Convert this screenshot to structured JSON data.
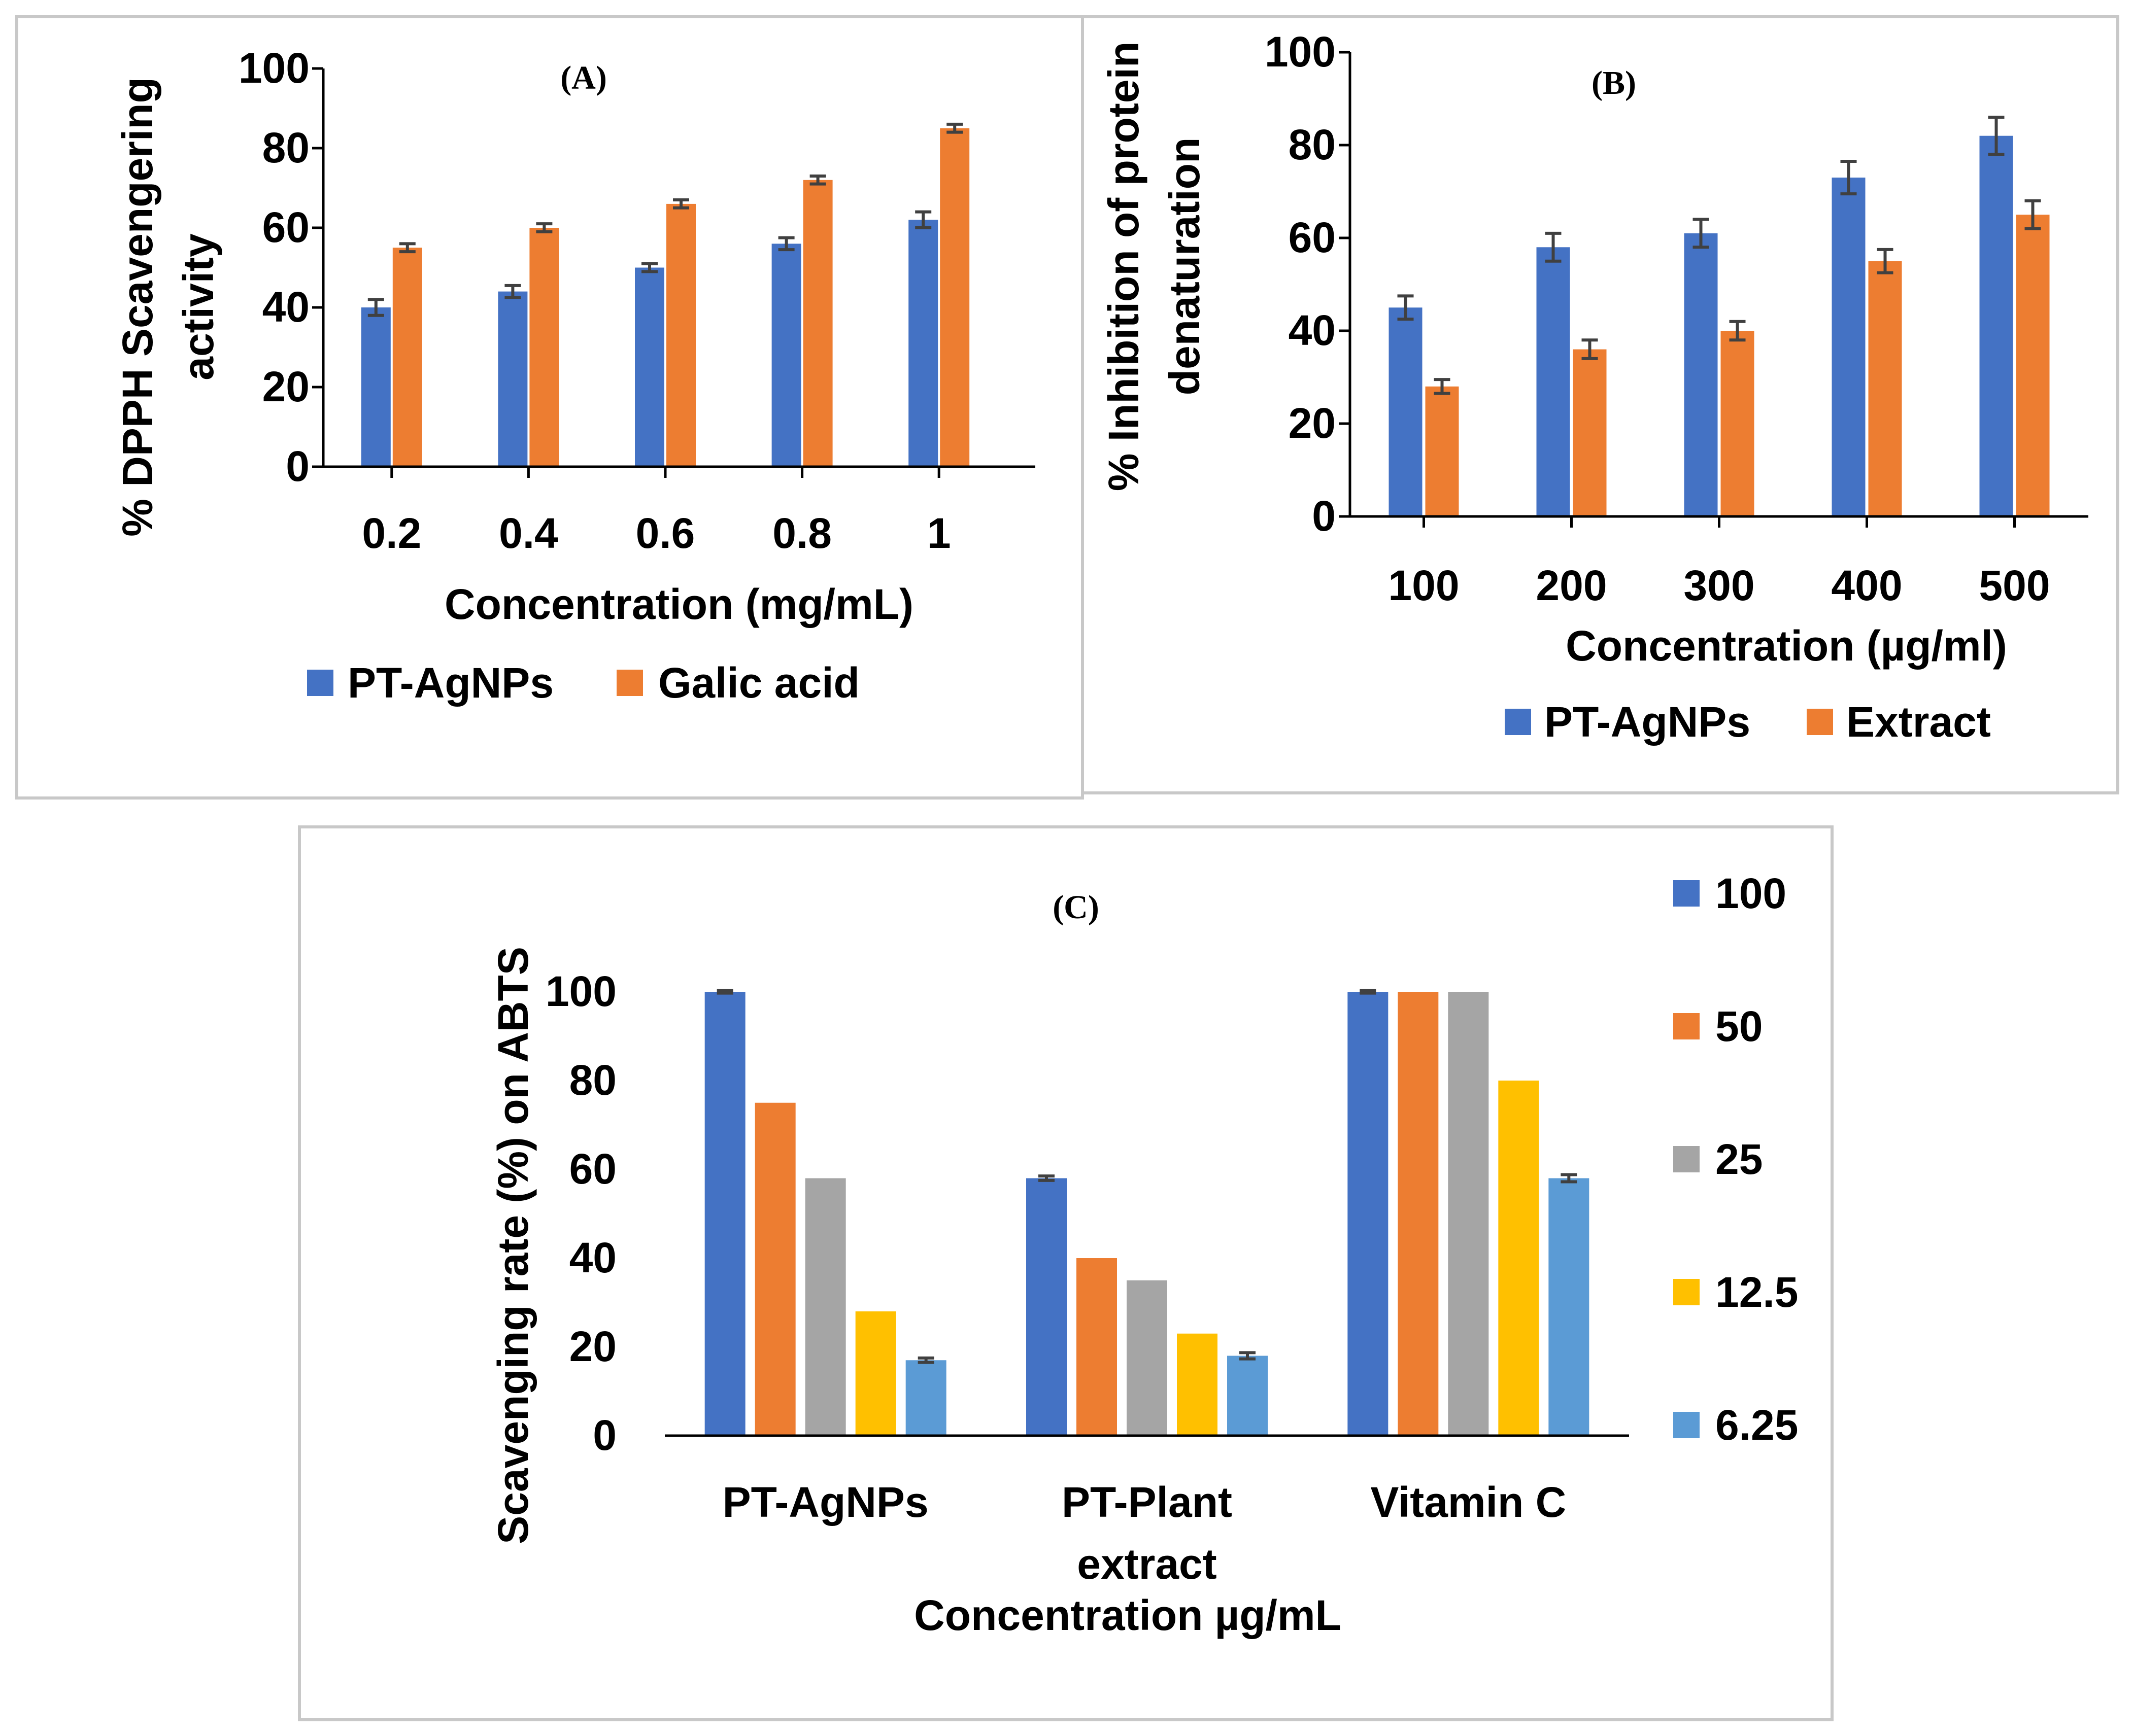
{
  "figure": {
    "colors": {
      "blue": "#4472C4",
      "orange": "#ED7D31",
      "gray": "#A5A5A5",
      "yellow": "#FFC000",
      "lightblue": "#5B9BD5"
    }
  },
  "chart_data": [
    {
      "id": "A",
      "type": "bar",
      "title": "(A)",
      "xlabel": "Concentration (mg/mL)",
      "ylabel_lines": [
        "% DPPH Scavengering",
        "activity"
      ],
      "categories": [
        "0.2",
        "0.4",
        "0.6",
        "0.8",
        "1"
      ],
      "ylim": [
        0,
        100
      ],
      "yticks": [
        "0",
        "20",
        "40",
        "60",
        "80",
        "100"
      ],
      "grid": false,
      "legend_position": "bottom",
      "series": [
        {
          "name": "PT-AgNPs",
          "color": "#4472C4",
          "values": [
            40,
            44,
            50,
            56,
            62
          ],
          "errors": [
            2,
            1.5,
            1,
            1.5,
            2
          ]
        },
        {
          "name": "Galic acid",
          "color": "#ED7D31",
          "values": [
            55,
            60,
            66,
            72,
            85
          ],
          "errors": [
            1,
            1,
            1,
            1,
            1
          ]
        }
      ]
    },
    {
      "id": "B",
      "type": "bar",
      "title": "(B)",
      "xlabel": "Concentration (µg/ml)",
      "ylabel_lines": [
        "% Inhibition of protein",
        "denaturation"
      ],
      "categories": [
        "100",
        "200",
        "300",
        "400",
        "500"
      ],
      "ylim": [
        0,
        100
      ],
      "yticks": [
        "0",
        "20",
        "40",
        "60",
        "80",
        "100"
      ],
      "grid": false,
      "legend_position": "bottom",
      "series": [
        {
          "name": "PT-AgNPs",
          "color": "#4472C4",
          "values": [
            45,
            58,
            61,
            73,
            82
          ],
          "errors": [
            2.5,
            3,
            3,
            3.5,
            4
          ]
        },
        {
          "name": "Extract",
          "color": "#ED7D31",
          "values": [
            28,
            36,
            40,
            55,
            65
          ],
          "errors": [
            1.5,
            2,
            2,
            2.5,
            3
          ]
        }
      ]
    },
    {
      "id": "C",
      "type": "bar",
      "title": "(C)",
      "xlabel": "Concentration µg/mL",
      "ylabel_lines": [
        "Scavenging rate (%) on ABTS"
      ],
      "categories": [
        "PT-AgNPs",
        "PT-Plant extract",
        "Vitamin C"
      ],
      "category_lines": [
        [
          "PT-AgNPs"
        ],
        [
          "PT-Plant",
          "extract"
        ],
        [
          "Vitamin C"
        ]
      ],
      "ylim": [
        0,
        100
      ],
      "yticks": [
        "0",
        "20",
        "40",
        "60",
        "80",
        "100"
      ],
      "grid": false,
      "legend_position": "right",
      "series": [
        {
          "name": "100",
          "color": "#4472C4",
          "values": [
            100,
            58,
            100
          ],
          "errors": [
            0.3,
            0.5,
            0.3
          ]
        },
        {
          "name": "50",
          "color": "#ED7D31",
          "values": [
            75,
            40,
            100
          ],
          "errors": [
            0,
            0,
            0
          ]
        },
        {
          "name": "25",
          "color": "#A5A5A5",
          "values": [
            58,
            35,
            100
          ],
          "errors": [
            0,
            0,
            0
          ]
        },
        {
          "name": "12.5",
          "color": "#FFC000",
          "values": [
            28,
            23,
            80
          ],
          "errors": [
            0,
            0,
            0
          ]
        },
        {
          "name": "6.25",
          "color": "#5B9BD5",
          "values": [
            17,
            18,
            58
          ],
          "errors": [
            0.5,
            0.7,
            0.8
          ]
        }
      ]
    }
  ]
}
